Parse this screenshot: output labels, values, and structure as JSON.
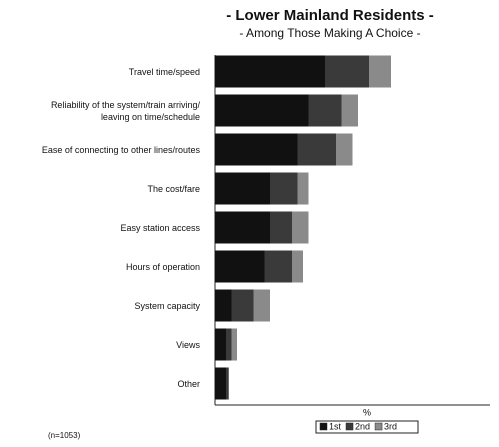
{
  "chart_data": {
    "type": "stacked-barh",
    "title": "- Lower Mainland Residents -",
    "subtitle": "- Among Those Making A Choice -",
    "xlabel": "%",
    "note": "(n=1053)",
    "categories": [
      "Travel time/speed",
      "Reliability of the system/train arriving/\nleaving on time/schedule",
      "Ease of connecting to other lines/routes",
      "The cost/fare",
      "Easy station access",
      "Hours of operation",
      "System capacity",
      "Views",
      "Other"
    ],
    "series": [
      {
        "name": "1st",
        "color": "#111111",
        "values": [
          20,
          17,
          15,
          10,
          10,
          9,
          3,
          2,
          2
        ]
      },
      {
        "name": "2nd",
        "color": "#3a3a3a",
        "values": [
          8,
          6,
          7,
          5,
          4,
          5,
          4,
          1,
          0.5
        ]
      },
      {
        "name": "3rd",
        "color": "#8a8a8a",
        "values": [
          4,
          3,
          3,
          2,
          3,
          2,
          3,
          1,
          0
        ]
      }
    ],
    "xlim": [
      0,
      50
    ]
  }
}
